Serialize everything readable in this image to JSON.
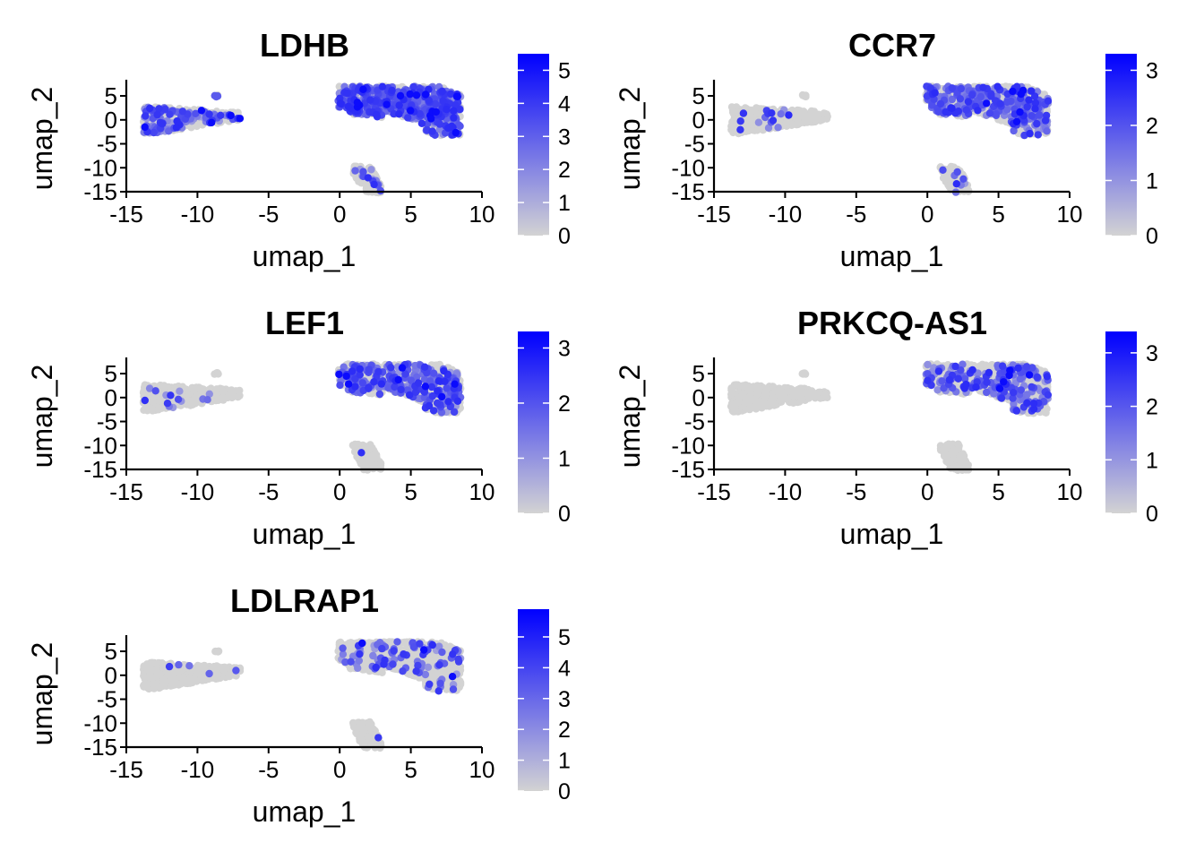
{
  "colors": {
    "low": "#d3d3d3",
    "high": "#0000ff",
    "axis": "#000000"
  },
  "chart_data": [
    {
      "type": "scatter",
      "title": "LDHB",
      "xlabel": "umap_1",
      "ylabel": "umap_2",
      "xlim": [
        -15,
        10
      ],
      "ylim": [
        -15,
        8
      ],
      "xticks": [
        "-15",
        "-10",
        "-5",
        "0",
        "5",
        "10"
      ],
      "xtick_values": [
        -15,
        -10,
        -5,
        0,
        5,
        10
      ],
      "yticks": [
        "-15",
        "-10",
        "-5",
        "0",
        "5"
      ],
      "ytick_values": [
        -15,
        -10,
        -5,
        0,
        5
      ],
      "legend": {
        "min": 0,
        "max": 5.5,
        "ticks": [
          "0",
          "1",
          "2",
          "3",
          "4",
          "5"
        ],
        "tick_values": [
          0,
          1,
          2,
          3,
          4,
          5
        ]
      },
      "expression_level": {
        "large_cluster": 0.55,
        "left_cluster": 0.3,
        "small_cluster": 0.15
      }
    },
    {
      "type": "scatter",
      "title": "CCR7",
      "xlabel": "umap_1",
      "ylabel": "umap_2",
      "xlim": [
        -15,
        10
      ],
      "ylim": [
        -15,
        8
      ],
      "xticks": [
        "-15",
        "-10",
        "-5",
        "0",
        "5",
        "10"
      ],
      "xtick_values": [
        -15,
        -10,
        -5,
        0,
        5,
        10
      ],
      "yticks": [
        "-15",
        "-10",
        "-5",
        "0",
        "5"
      ],
      "ytick_values": [
        -15,
        -10,
        -5,
        0,
        5
      ],
      "legend": {
        "min": 0,
        "max": 3.3,
        "ticks": [
          "0",
          "1",
          "2",
          "3"
        ],
        "tick_values": [
          0,
          1,
          2,
          3
        ]
      },
      "expression_level": {
        "large_cluster": 0.3,
        "left_cluster": 0.04,
        "small_cluster": 0.05
      }
    },
    {
      "type": "scatter",
      "title": "LEF1",
      "xlabel": "umap_1",
      "ylabel": "umap_2",
      "xlim": [
        -15,
        10
      ],
      "ylim": [
        -15,
        8
      ],
      "xticks": [
        "-15",
        "-10",
        "-5",
        "0",
        "5",
        "10"
      ],
      "xtick_values": [
        -15,
        -10,
        -5,
        0,
        5,
        10
      ],
      "yticks": [
        "-15",
        "-10",
        "-5",
        "0",
        "5"
      ],
      "ytick_values": [
        -15,
        -10,
        -5,
        0,
        5
      ],
      "legend": {
        "min": 0,
        "max": 3.3,
        "ticks": [
          "0",
          "1",
          "2",
          "3"
        ],
        "tick_values": [
          0,
          1,
          2,
          3
        ]
      },
      "expression_level": {
        "large_cluster": 0.25,
        "left_cluster": 0.03,
        "small_cluster": 0.02
      }
    },
    {
      "type": "scatter",
      "title": "PRKCQ-AS1",
      "xlabel": "umap_1",
      "ylabel": "umap_2",
      "xlim": [
        -15,
        10
      ],
      "ylim": [
        -15,
        8
      ],
      "xticks": [
        "-15",
        "-10",
        "-5",
        "0",
        "5",
        "10"
      ],
      "xtick_values": [
        -15,
        -10,
        -5,
        0,
        5,
        10
      ],
      "yticks": [
        "-15",
        "-10",
        "-5",
        "0",
        "5"
      ],
      "ytick_values": [
        -15,
        -10,
        -5,
        0,
        5
      ],
      "legend": {
        "min": 0,
        "max": 3.4,
        "ticks": [
          "0",
          "1",
          "2",
          "3"
        ],
        "tick_values": [
          0,
          1,
          2,
          3
        ]
      },
      "expression_level": {
        "large_cluster": 0.2,
        "left_cluster": 0.0,
        "small_cluster": 0.0
      }
    },
    {
      "type": "scatter",
      "title": "LDLRAP1",
      "xlabel": "umap_1",
      "ylabel": "umap_2",
      "xlim": [
        -15,
        10
      ],
      "ylim": [
        -15,
        8
      ],
      "xticks": [
        "-15",
        "-10",
        "-5",
        "0",
        "5",
        "10"
      ],
      "xtick_values": [
        -15,
        -10,
        -5,
        0,
        5,
        10
      ],
      "yticks": [
        "-15",
        "-10",
        "-5",
        "0",
        "5"
      ],
      "ytick_values": [
        -15,
        -10,
        -5,
        0,
        5
      ],
      "legend": {
        "min": 0,
        "max": 5.9,
        "ticks": [
          "0",
          "1",
          "2",
          "3",
          "4",
          "5"
        ],
        "tick_values": [
          0,
          1,
          2,
          3,
          4,
          5
        ]
      },
      "expression_level": {
        "large_cluster": 0.12,
        "left_cluster": 0.02,
        "small_cluster": 0.02
      }
    }
  ]
}
